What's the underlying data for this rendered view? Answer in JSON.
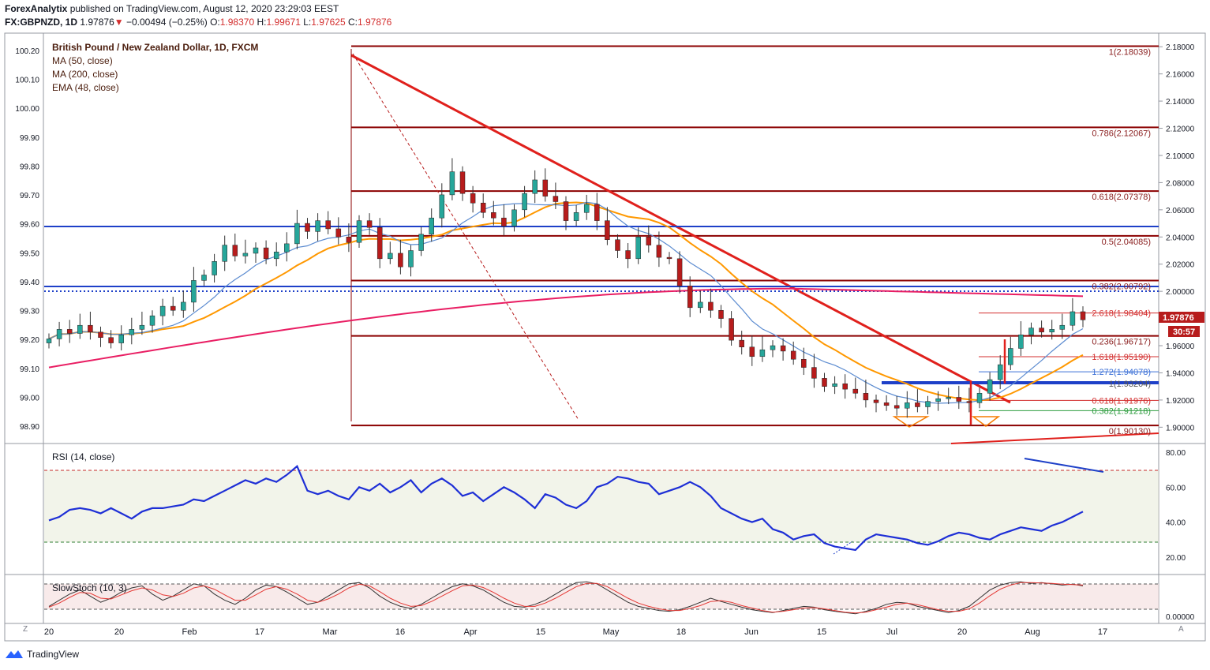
{
  "header": {
    "publisher": "ForexAnalytix",
    "published_text": "published on TradingView.com, August 12, 2020 23:29:03 EEST",
    "symbol": "FX:GBPNZD, 1D",
    "last": "1.97876",
    "arrow": "▼",
    "change": "−0.00494 (−0.25%)",
    "o_label": "O:",
    "o": "1.98370",
    "h_label": "H:",
    "h": "1.99671",
    "l_label": "L:",
    "l": "1.97625",
    "c_label": "C:",
    "c": "1.97876"
  },
  "legend": {
    "title": "British Pound / New Zealand Dollar, 1D, FXCM",
    "ma50": "MA (50, close)",
    "ma200": "MA (200, close)",
    "ema48": "EMA (48, close)"
  },
  "rsi_label": "RSI (14, close)",
  "stoch_label": "SlowStoch (10, 3)",
  "price_tag": "1.97876",
  "countdown_tag": "30:57",
  "footer_brand": "TradingView",
  "corner_left": "Z",
  "corner_right": "A",
  "colors": {
    "up": "#26a69a",
    "down": "#b71c1c",
    "ma50": "#5b8bd0",
    "ma200": "#e91e63",
    "ema48": "#ff9800",
    "level": "#8b0000",
    "blue_level": "#1e40c8",
    "rsi": "#1e2fd6"
  },
  "chart_data": [
    {
      "type": "candlestick",
      "title": "British Pound / New Zealand Dollar, 1D, FXCM",
      "right_axis": {
        "ylim": [
          1.888,
          2.19
        ],
        "ticks": [
          "2.18000",
          "2.16000",
          "2.14000",
          "2.12000",
          "2.10000",
          "2.08000",
          "2.06000",
          "2.04000",
          "2.02000",
          "2.00000",
          "1.98000",
          "1.96000",
          "1.94000",
          "1.92000",
          "1.90000"
        ]
      },
      "left_axis": {
        "ylim": [
          98.84,
          100.26
        ],
        "ticks": [
          "100.20",
          "100.10",
          "100.00",
          "99.90",
          "99.80",
          "99.70",
          "99.60",
          "99.50",
          "99.40",
          "99.30",
          "99.20",
          "99.10",
          "99.00",
          "98.90"
        ]
      },
      "x_ticks": [
        "20",
        "20",
        "Feb",
        "17",
        "Mar",
        "16",
        "Apr",
        "15",
        "May",
        "18",
        "Jun",
        "15",
        "Jul",
        "20",
        "Aug",
        "17"
      ],
      "close_series": [
        1.965,
        1.972,
        1.969,
        1.975,
        1.97,
        1.966,
        1.962,
        1.968,
        1.972,
        1.975,
        1.982,
        1.989,
        1.986,
        1.992,
        2.008,
        2.012,
        2.022,
        2.034,
        2.026,
        2.028,
        2.032,
        2.024,
        2.029,
        2.035,
        2.05,
        2.044,
        2.052,
        2.046,
        2.04,
        2.036,
        2.052,
        2.047,
        2.024,
        2.028,
        2.018,
        2.03,
        2.042,
        2.054,
        2.071,
        2.088,
        2.072,
        2.065,
        2.058,
        2.054,
        2.048,
        2.06,
        2.072,
        2.082,
        2.07,
        2.066,
        2.052,
        2.058,
        2.064,
        2.052,
        2.038,
        2.03,
        2.024,
        2.04,
        2.034,
        2.025,
        2.024,
        2.004,
        1.988,
        1.992,
        1.986,
        1.98,
        1.964,
        1.959,
        1.952,
        1.957,
        1.96,
        1.956,
        1.95,
        1.944,
        1.936,
        1.93,
        1.932,
        1.928,
        1.925,
        1.92,
        1.918,
        1.916,
        1.914,
        1.918,
        1.915,
        1.919,
        1.921,
        1.922,
        1.919,
        1.918,
        1.925,
        1.935,
        1.946,
        1.958,
        1.968,
        1.973,
        1.97,
        1.972,
        1.975,
        1.985,
        1.979
      ],
      "levels": [
        {
          "label": "1(2.18039)",
          "value": 2.18039
        },
        {
          "label": "0.786(2.12067)",
          "value": 2.12067
        },
        {
          "label": "0.618(2.07378)",
          "value": 2.07378
        },
        {
          "label": "0.5(2.04085)",
          "value": 2.04085
        },
        {
          "label": "0.382(2.00792)",
          "value": 2.00792
        },
        {
          "label": "0.236(1.96717)",
          "value": 1.96717
        },
        {
          "label": "0(1.90130)",
          "value": 1.9013
        }
      ],
      "extension_levels": [
        {
          "label": "2.618(1.98404)",
          "value": 1.98404,
          "color": "#d32f2f"
        },
        {
          "label": "1.618(1.95190)",
          "value": 1.9519,
          "color": "#d32f2f"
        },
        {
          "label": "1.272(1.94078)",
          "value": 1.94078,
          "color": "#3b6fd6"
        },
        {
          "label": "1(1.93204)",
          "value": 1.93204,
          "color": "#555555"
        },
        {
          "label": "0.618(1.91976)",
          "value": 1.91976,
          "color": "#d32f2f"
        },
        {
          "label": "0.382(1.91218)",
          "value": 1.91218,
          "color": "#2e9d3f"
        }
      ],
      "horizontal_support": [
        2.047,
        2.0,
        1.93
      ]
    },
    {
      "type": "line",
      "title": "RSI (14, close)",
      "ylim": [
        10,
        85
      ],
      "ticks": [
        "80.00",
        "60.00",
        "40.00",
        "20.00"
      ],
      "bands": [
        30,
        70
      ],
      "values": [
        41,
        43,
        47,
        48,
        47,
        45,
        48,
        45,
        42,
        46,
        48,
        48,
        49,
        50,
        53,
        52,
        55,
        58,
        61,
        64,
        62,
        65,
        63,
        67,
        72,
        58,
        56,
        58,
        55,
        53,
        60,
        58,
        62,
        57,
        60,
        64,
        57,
        62,
        65,
        61,
        55,
        57,
        52,
        56,
        60,
        57,
        53,
        48,
        56,
        54,
        50,
        48,
        52,
        60,
        62,
        66,
        65,
        63,
        62,
        56,
        58,
        60,
        63,
        60,
        55,
        48,
        45,
        42,
        40,
        42,
        36,
        34,
        30,
        32,
        33,
        28,
        26,
        25,
        24,
        30,
        33,
        32,
        31,
        30,
        28,
        27,
        29,
        32,
        34,
        33,
        31,
        30,
        33,
        35,
        37,
        36,
        35,
        38,
        40,
        43,
        46
      ]
    },
    {
      "type": "line",
      "title": "SlowStoch (10, 3)",
      "ylim": [
        0,
        100
      ],
      "ticks": [
        "0.00000"
      ],
      "bands": [
        20,
        80
      ],
      "series": [
        {
          "values": [
            30,
            45,
            60,
            70,
            55,
            40,
            50,
            65,
            75,
            80,
            60,
            45,
            55,
            70,
            85,
            80,
            60,
            45,
            35,
            50,
            70,
            82,
            78,
            65,
            50,
            35,
            40,
            55,
            70,
            85,
            88,
            75,
            55,
            40,
            30,
            25,
            35,
            50,
            65,
            78,
            85,
            80,
            70,
            55,
            40,
            30,
            28,
            35,
            45,
            60,
            75,
            88,
            90,
            85,
            70,
            55,
            40,
            30,
            25,
            20,
            18,
            22,
            30,
            40,
            50,
            42,
            35,
            28,
            22,
            18,
            15,
            20,
            25,
            30,
            28,
            22,
            18,
            15,
            12,
            18,
            25,
            35,
            40,
            38,
            30,
            25,
            20,
            15,
            20,
            30,
            50,
            70,
            82,
            88,
            90,
            86,
            88,
            85,
            82,
            84,
            80
          ]
        },
        {
          "values": [
            28,
            38,
            52,
            64,
            62,
            50,
            48,
            58,
            68,
            75,
            70,
            58,
            54,
            62,
            75,
            80,
            72,
            58,
            45,
            45,
            58,
            72,
            78,
            72,
            60,
            45,
            40,
            48,
            60,
            75,
            84,
            80,
            66,
            50,
            38,
            30,
            32,
            42,
            55,
            68,
            80,
            82,
            76,
            64,
            50,
            38,
            30,
            30,
            38,
            50,
            64,
            78,
            86,
            86,
            78,
            64,
            50,
            38,
            30,
            24,
            20,
            20,
            25,
            32,
            42,
            44,
            40,
            32,
            26,
            20,
            16,
            18,
            22,
            26,
            27,
            24,
            20,
            16,
            14,
            16,
            22,
            28,
            35,
            38,
            34,
            28,
            22,
            18,
            18,
            24,
            38,
            56,
            72,
            82,
            88,
            88,
            87,
            86,
            84,
            83,
            82
          ]
        }
      ]
    }
  ]
}
